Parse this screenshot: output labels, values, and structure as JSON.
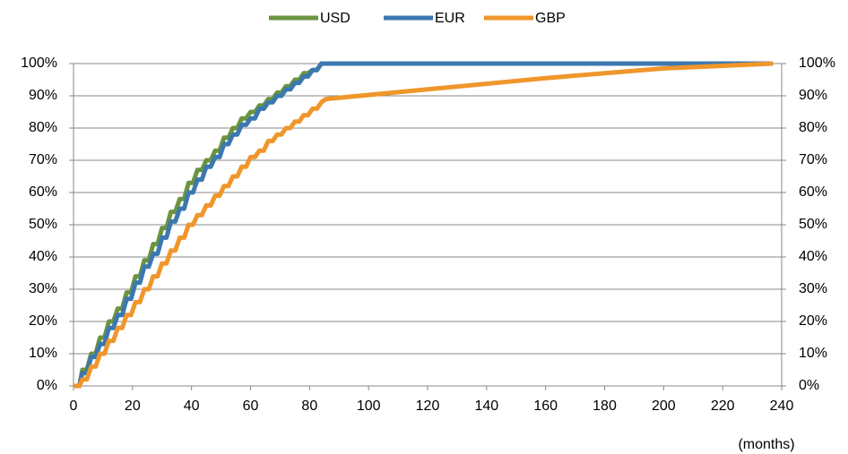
{
  "chart_data": {
    "type": "line",
    "axis_label": "(months)",
    "x": [
      0,
      2,
      3,
      4.5,
      6,
      7.5,
      9,
      10.5,
      12,
      13.5,
      15,
      16.5,
      18,
      19.5,
      21,
      22.5,
      24,
      25.5,
      27,
      28.5,
      30,
      31.5,
      33,
      34.5,
      36,
      37.5,
      39,
      40.5,
      42,
      43.5,
      45,
      46.5,
      48,
      49.5,
      51,
      52.5,
      54,
      55.5,
      57,
      58.5,
      60,
      61.5,
      63,
      64.5,
      66,
      67.5,
      69,
      70.5,
      72,
      73.5,
      75,
      76.5,
      78,
      79.5,
      81,
      82.5,
      84,
      85.5,
      120,
      160,
      200,
      237
    ],
    "series": [
      {
        "name": "USD",
        "color": "#6b9440",
        "values": [
          0,
          0,
          5,
          5,
          10,
          10,
          15,
          15,
          20,
          20,
          24,
          24,
          29,
          29,
          34,
          34,
          39,
          39,
          44,
          44,
          49,
          49,
          54,
          54,
          58,
          58,
          63,
          63,
          67,
          67,
          70,
          70,
          73,
          73,
          77,
          77,
          80,
          80,
          83,
          83,
          85,
          85,
          87,
          87,
          89,
          89,
          91,
          91,
          93,
          93,
          95,
          95,
          97,
          97,
          98,
          98,
          100,
          100,
          100,
          100,
          100,
          100
        ]
      },
      {
        "name": "EUR",
        "color": "#3b78b0",
        "values": [
          0,
          0,
          4,
          4,
          9,
          9,
          13,
          13,
          18,
          18,
          22,
          22,
          27,
          27,
          32,
          32,
          37,
          37,
          41,
          41,
          46,
          46,
          51,
          51,
          55,
          55,
          60,
          60,
          64,
          64,
          68,
          68,
          71,
          71,
          75,
          75,
          78,
          78,
          81,
          81,
          83,
          83,
          86,
          86,
          88,
          88,
          90,
          90,
          92,
          92,
          94,
          94,
          96,
          96,
          98,
          98,
          100,
          100,
          100,
          100,
          100,
          100
        ]
      },
      {
        "name": "GBP",
        "color": "#f0962b",
        "values": [
          0,
          0,
          2,
          2,
          6,
          6,
          10,
          10,
          14,
          14,
          18,
          18,
          22,
          22,
          26,
          26,
          30,
          30,
          34,
          34,
          38,
          38,
          42,
          42,
          46,
          46,
          50,
          50,
          53,
          53,
          56,
          56,
          59,
          59,
          62,
          62,
          65,
          65,
          68,
          68,
          71,
          71,
          73,
          73,
          76,
          76,
          78,
          78,
          80,
          80,
          82,
          82,
          84,
          84,
          86,
          86,
          88,
          89,
          92,
          95.5,
          98.5,
          100
        ]
      }
    ],
    "xlim": [
      0,
      240
    ],
    "xticks": [
      0,
      20,
      40,
      60,
      80,
      100,
      120,
      140,
      160,
      180,
      200,
      220,
      240
    ],
    "ylim": [
      0,
      100
    ],
    "yticks": [
      {
        "value": 0,
        "label": "0%"
      },
      {
        "value": 10,
        "label": "10%"
      },
      {
        "value": 20,
        "label": "20%"
      },
      {
        "value": 30,
        "label": "30%"
      },
      {
        "value": 40,
        "label": "40%"
      },
      {
        "value": 50,
        "label": "50%"
      },
      {
        "value": 60,
        "label": "60%"
      },
      {
        "value": 70,
        "label": "70%"
      },
      {
        "value": 80,
        "label": "80%"
      },
      {
        "value": 90,
        "label": "90%"
      },
      {
        "value": 100,
        "label": "100%"
      }
    ],
    "y2lim": [
      0,
      100
    ],
    "y2ticks": [
      {
        "value": 0,
        "label": "0%"
      },
      {
        "value": 10,
        "label": "10%"
      },
      {
        "value": 20,
        "label": "20%"
      },
      {
        "value": 30,
        "label": "30%"
      },
      {
        "value": 40,
        "label": "40%"
      },
      {
        "value": 50,
        "label": "50%"
      },
      {
        "value": 60,
        "label": "60%"
      },
      {
        "value": 70,
        "label": "70%"
      },
      {
        "value": 80,
        "label": "80%"
      },
      {
        "value": 90,
        "label": "90%"
      },
      {
        "value": 100,
        "label": "100%"
      }
    ],
    "grid": true,
    "legend": "top"
  }
}
